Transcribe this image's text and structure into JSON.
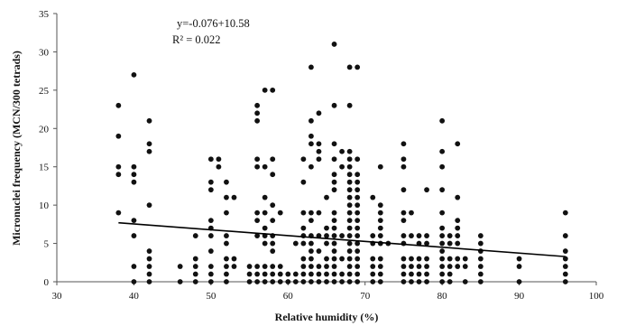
{
  "chart_data": {
    "type": "scatter",
    "title": "",
    "xlabel": "Relative humidity (%)",
    "ylabel": "Micronuclei frequency (MCN/300 tetrads)",
    "xlim": [
      30,
      100
    ],
    "ylim": [
      0,
      35
    ],
    "xticks": [
      30,
      40,
      50,
      60,
      70,
      80,
      90,
      100
    ],
    "yticks": [
      0,
      5,
      10,
      15,
      20,
      25,
      30,
      35
    ],
    "grid": false,
    "legend": "none",
    "marker_color": "#111111",
    "trendline": {
      "type": "linear",
      "slope": -0.076,
      "intercept": 10.58,
      "x_start": 38,
      "x_end": 96,
      "equation_label": "y=-0.076+10.58",
      "r2_label": "R² = 0.022"
    },
    "points": [
      [
        38,
        23
      ],
      [
        38,
        19
      ],
      [
        38,
        15
      ],
      [
        38,
        14
      ],
      [
        38,
        9
      ],
      [
        40,
        27
      ],
      [
        40,
        15
      ],
      [
        40,
        14
      ],
      [
        40,
        13
      ],
      [
        40,
        8
      ],
      [
        40,
        6
      ],
      [
        40,
        2
      ],
      [
        40,
        0
      ],
      [
        42,
        21
      ],
      [
        42,
        18
      ],
      [
        42,
        17
      ],
      [
        42,
        10
      ],
      [
        42,
        4
      ],
      [
        42,
        3
      ],
      [
        42,
        2
      ],
      [
        42,
        1
      ],
      [
        42,
        0
      ],
      [
        46,
        2
      ],
      [
        46,
        0
      ],
      [
        48,
        6
      ],
      [
        48,
        3
      ],
      [
        48,
        2
      ],
      [
        48,
        1
      ],
      [
        48,
        0
      ],
      [
        50,
        16
      ],
      [
        50,
        13
      ],
      [
        50,
        12
      ],
      [
        50,
        8
      ],
      [
        50,
        7
      ],
      [
        50,
        6
      ],
      [
        50,
        4
      ],
      [
        50,
        2
      ],
      [
        50,
        1
      ],
      [
        50,
        0
      ],
      [
        51,
        16
      ],
      [
        51,
        15
      ],
      [
        52,
        13
      ],
      [
        52,
        11
      ],
      [
        52,
        9
      ],
      [
        52,
        6
      ],
      [
        52,
        5
      ],
      [
        52,
        3
      ],
      [
        52,
        2
      ],
      [
        52,
        1
      ],
      [
        52,
        0
      ],
      [
        53,
        11
      ],
      [
        53,
        3
      ],
      [
        53,
        2
      ],
      [
        55,
        2
      ],
      [
        55,
        1
      ],
      [
        55,
        0
      ],
      [
        56,
        23
      ],
      [
        56,
        22
      ],
      [
        56,
        21
      ],
      [
        56,
        16
      ],
      [
        56,
        15
      ],
      [
        56,
        9
      ],
      [
        56,
        8
      ],
      [
        56,
        6
      ],
      [
        56,
        2
      ],
      [
        56,
        1
      ],
      [
        56,
        0
      ],
      [
        57,
        25
      ],
      [
        57,
        15
      ],
      [
        57,
        11
      ],
      [
        57,
        9
      ],
      [
        57,
        7
      ],
      [
        57,
        6
      ],
      [
        57,
        5
      ],
      [
        57,
        2
      ],
      [
        57,
        1
      ],
      [
        57,
        0
      ],
      [
        58,
        25
      ],
      [
        58,
        16
      ],
      [
        58,
        14
      ],
      [
        58,
        10
      ],
      [
        58,
        8
      ],
      [
        58,
        6
      ],
      [
        58,
        5
      ],
      [
        58,
        4
      ],
      [
        58,
        2
      ],
      [
        58,
        1
      ],
      [
        58,
        0
      ],
      [
        59,
        9
      ],
      [
        59,
        2
      ],
      [
        59,
        1
      ],
      [
        59,
        0
      ],
      [
        60,
        1
      ],
      [
        60,
        0
      ],
      [
        61,
        5
      ],
      [
        61,
        1
      ],
      [
        61,
        0
      ],
      [
        62,
        16
      ],
      [
        62,
        13
      ],
      [
        62,
        9
      ],
      [
        62,
        7
      ],
      [
        62,
        6
      ],
      [
        62,
        5
      ],
      [
        62,
        3
      ],
      [
        62,
        2
      ],
      [
        62,
        1
      ],
      [
        62,
        0
      ],
      [
        63,
        28
      ],
      [
        63,
        21
      ],
      [
        63,
        19
      ],
      [
        63,
        18
      ],
      [
        63,
        15
      ],
      [
        63,
        9
      ],
      [
        63,
        8
      ],
      [
        63,
        6
      ],
      [
        63,
        5
      ],
      [
        63,
        4
      ],
      [
        63,
        3
      ],
      [
        63,
        2
      ],
      [
        63,
        1
      ],
      [
        63,
        0
      ],
      [
        64,
        22
      ],
      [
        64,
        18
      ],
      [
        64,
        17
      ],
      [
        64,
        16
      ],
      [
        64,
        9
      ],
      [
        64,
        6
      ],
      [
        64,
        4
      ],
      [
        64,
        2
      ],
      [
        64,
        1
      ],
      [
        64,
        0
      ],
      [
        65,
        11
      ],
      [
        65,
        7
      ],
      [
        65,
        6
      ],
      [
        65,
        5
      ],
      [
        65,
        3
      ],
      [
        65,
        2
      ],
      [
        65,
        1
      ],
      [
        65,
        0
      ],
      [
        66,
        31
      ],
      [
        66,
        23
      ],
      [
        66,
        18
      ],
      [
        66,
        16
      ],
      [
        66,
        14
      ],
      [
        66,
        13
      ],
      [
        66,
        12
      ],
      [
        66,
        9
      ],
      [
        66,
        8
      ],
      [
        66,
        7
      ],
      [
        66,
        6
      ],
      [
        66,
        5
      ],
      [
        66,
        4
      ],
      [
        66,
        3
      ],
      [
        66,
        2
      ],
      [
        66,
        1
      ],
      [
        66,
        0
      ],
      [
        67,
        17
      ],
      [
        67,
        15
      ],
      [
        67,
        6
      ],
      [
        67,
        3
      ],
      [
        67,
        1
      ],
      [
        67,
        0
      ],
      [
        68,
        28
      ],
      [
        68,
        23
      ],
      [
        68,
        17
      ],
      [
        68,
        16
      ],
      [
        68,
        15
      ],
      [
        68,
        14
      ],
      [
        68,
        13
      ],
      [
        68,
        12
      ],
      [
        68,
        11
      ],
      [
        68,
        10
      ],
      [
        68,
        9
      ],
      [
        68,
        8
      ],
      [
        68,
        7
      ],
      [
        68,
        6
      ],
      [
        68,
        5
      ],
      [
        68,
        4
      ],
      [
        68,
        3
      ],
      [
        68,
        2
      ],
      [
        68,
        1
      ],
      [
        68,
        0
      ],
      [
        69,
        28
      ],
      [
        69,
        16
      ],
      [
        69,
        14
      ],
      [
        69,
        13
      ],
      [
        69,
        12
      ],
      [
        69,
        11
      ],
      [
        69,
        10
      ],
      [
        69,
        9
      ],
      [
        69,
        8
      ],
      [
        69,
        7
      ],
      [
        69,
        6
      ],
      [
        69,
        5
      ],
      [
        69,
        4
      ],
      [
        69,
        3
      ],
      [
        69,
        2
      ],
      [
        69,
        1
      ],
      [
        69,
        0
      ],
      [
        71,
        11
      ],
      [
        71,
        6
      ],
      [
        71,
        5
      ],
      [
        71,
        3
      ],
      [
        71,
        2
      ],
      [
        71,
        1
      ],
      [
        71,
        0
      ],
      [
        72,
        15
      ],
      [
        72,
        10
      ],
      [
        72,
        9
      ],
      [
        72,
        8
      ],
      [
        72,
        7
      ],
      [
        72,
        6
      ],
      [
        72,
        5
      ],
      [
        72,
        3
      ],
      [
        72,
        2
      ],
      [
        72,
        1
      ],
      [
        72,
        0
      ],
      [
        73,
        5
      ],
      [
        75,
        18
      ],
      [
        75,
        16
      ],
      [
        75,
        15
      ],
      [
        75,
        12
      ],
      [
        75,
        9
      ],
      [
        75,
        8
      ],
      [
        75,
        6
      ],
      [
        75,
        5
      ],
      [
        75,
        3
      ],
      [
        75,
        2
      ],
      [
        75,
        1
      ],
      [
        75,
        0
      ],
      [
        76,
        9
      ],
      [
        76,
        6
      ],
      [
        76,
        3
      ],
      [
        76,
        2
      ],
      [
        76,
        1
      ],
      [
        76,
        0
      ],
      [
        77,
        6
      ],
      [
        77,
        5
      ],
      [
        77,
        3
      ],
      [
        77,
        2
      ],
      [
        77,
        1
      ],
      [
        77,
        0
      ],
      [
        78,
        12
      ],
      [
        78,
        6
      ],
      [
        78,
        5
      ],
      [
        78,
        3
      ],
      [
        78,
        2
      ],
      [
        78,
        1
      ],
      [
        78,
        0
      ],
      [
        80,
        21
      ],
      [
        80,
        17
      ],
      [
        80,
        15
      ],
      [
        80,
        12
      ],
      [
        80,
        9
      ],
      [
        80,
        7
      ],
      [
        80,
        6
      ],
      [
        80,
        5
      ],
      [
        80,
        4
      ],
      [
        80,
        3
      ],
      [
        80,
        2
      ],
      [
        80,
        1
      ],
      [
        80,
        0
      ],
      [
        81,
        6
      ],
      [
        81,
        5
      ],
      [
        81,
        3
      ],
      [
        81,
        2
      ],
      [
        81,
        1
      ],
      [
        81,
        0
      ],
      [
        82,
        18
      ],
      [
        82,
        11
      ],
      [
        82,
        8
      ],
      [
        82,
        7
      ],
      [
        82,
        6
      ],
      [
        82,
        5
      ],
      [
        82,
        3
      ],
      [
        82,
        2
      ],
      [
        83,
        3
      ],
      [
        83,
        2
      ],
      [
        83,
        0
      ],
      [
        85,
        6
      ],
      [
        85,
        5
      ],
      [
        85,
        4
      ],
      [
        85,
        3
      ],
      [
        85,
        2
      ],
      [
        85,
        1
      ],
      [
        85,
        0
      ],
      [
        90,
        3
      ],
      [
        90,
        2
      ],
      [
        90,
        0
      ],
      [
        96,
        9
      ],
      [
        96,
        6
      ],
      [
        96,
        4
      ],
      [
        96,
        3
      ],
      [
        96,
        2
      ],
      [
        96,
        1
      ],
      [
        96,
        0
      ]
    ]
  }
}
